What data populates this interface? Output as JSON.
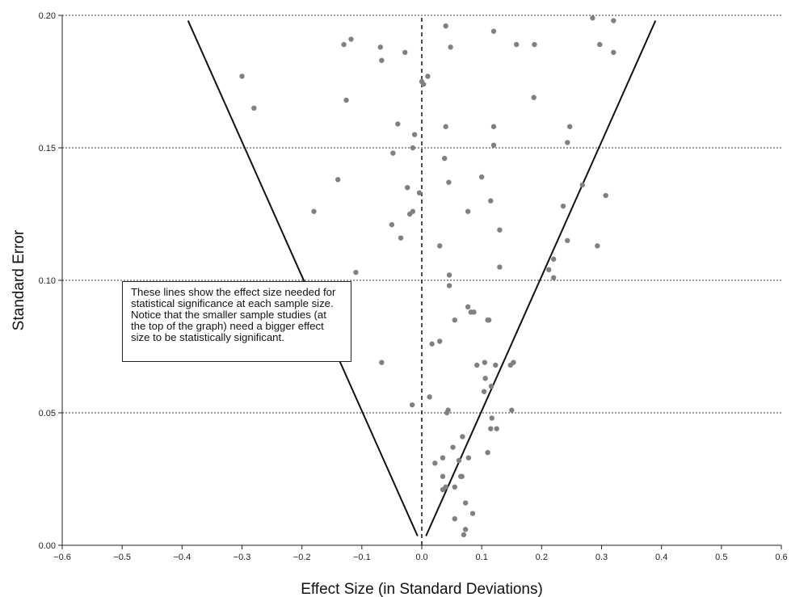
{
  "chart_data": {
    "type": "scatter",
    "xlabel": "Effect Size (in Standard Deviations)",
    "ylabel": "Standard Error",
    "xlim": [
      -0.6,
      0.6
    ],
    "ylim": [
      0.0,
      0.2
    ],
    "x_ticks": [
      "−0.6",
      "−0.5",
      "−0.4",
      "−0.3",
      "−0.2",
      "−0.1",
      "0.0",
      "0.1",
      "0.2",
      "0.3",
      "0.4",
      "0.5",
      "0.6"
    ],
    "y_ticks": [
      "0.00",
      "0.05",
      "0.10",
      "0.15",
      "0.20"
    ],
    "grid": "horizontal dotted",
    "annotation": "These lines show the effect size needed for statistical significance at each sample size. Notice that the smaller sample studies (at the top of the graph) need a bigger effect size to be statistically significant.",
    "funnel_lines": [
      {
        "x": [
          -0.39,
          -0.007
        ],
        "y": [
          0.198,
          0.0035
        ]
      },
      {
        "x": [
          0.39,
          0.007
        ],
        "y": [
          0.198,
          0.0035
        ]
      }
    ],
    "reference_line": {
      "x": 0.0,
      "y": [
        0.0,
        0.2
      ]
    },
    "points": [
      [
        0.285,
        0.199
      ],
      [
        0.32,
        0.198
      ],
      [
        0.04,
        0.196
      ],
      [
        0.12,
        0.194
      ],
      [
        0.32,
        0.186
      ],
      [
        0.297,
        0.189
      ],
      [
        0.188,
        0.189
      ],
      [
        0.158,
        0.189
      ],
      [
        0.048,
        0.188
      ],
      [
        -0.069,
        0.188
      ],
      [
        -0.13,
        0.189
      ],
      [
        -0.118,
        0.191
      ],
      [
        -0.028,
        0.186
      ],
      [
        -0.067,
        0.183
      ],
      [
        -0.3,
        0.177
      ],
      [
        0.01,
        0.177
      ],
      [
        0.0,
        0.175
      ],
      [
        0.003,
        0.174
      ],
      [
        -0.126,
        0.168
      ],
      [
        -0.28,
        0.165
      ],
      [
        0.187,
        0.169
      ],
      [
        -0.04,
        0.159
      ],
      [
        0.04,
        0.158
      ],
      [
        0.12,
        0.158
      ],
      [
        0.247,
        0.158
      ],
      [
        -0.012,
        0.155
      ],
      [
        0.243,
        0.152
      ],
      [
        0.12,
        0.151
      ],
      [
        -0.015,
        0.15
      ],
      [
        -0.048,
        0.148
      ],
      [
        0.038,
        0.146
      ],
      [
        -0.14,
        0.138
      ],
      [
        0.1,
        0.139
      ],
      [
        0.045,
        0.137
      ],
      [
        0.268,
        0.136
      ],
      [
        -0.024,
        0.135
      ],
      [
        -0.004,
        0.133
      ],
      [
        0.307,
        0.132
      ],
      [
        0.115,
        0.13
      ],
      [
        -0.18,
        0.126
      ],
      [
        -0.015,
        0.126
      ],
      [
        -0.02,
        0.125
      ],
      [
        0.077,
        0.126
      ],
      [
        0.236,
        0.128
      ],
      [
        0.13,
        0.119
      ],
      [
        -0.05,
        0.121
      ],
      [
        -0.035,
        0.116
      ],
      [
        0.243,
        0.115
      ],
      [
        0.03,
        0.113
      ],
      [
        0.293,
        0.113
      ],
      [
        0.22,
        0.108
      ],
      [
        0.13,
        0.105
      ],
      [
        0.212,
        0.104
      ],
      [
        -0.11,
        0.103
      ],
      [
        0.046,
        0.102
      ],
      [
        0.22,
        0.101
      ],
      [
        0.046,
        0.098
      ],
      [
        0.077,
        0.09
      ],
      [
        0.082,
        0.088
      ],
      [
        0.087,
        0.088
      ],
      [
        0.11,
        0.085
      ],
      [
        0.112,
        0.085
      ],
      [
        0.055,
        0.085
      ],
      [
        0.03,
        0.077
      ],
      [
        0.017,
        0.076
      ],
      [
        -0.067,
        0.069
      ],
      [
        0.105,
        0.069
      ],
      [
        0.123,
        0.068
      ],
      [
        0.153,
        0.069
      ],
      [
        0.092,
        0.068
      ],
      [
        0.148,
        0.068
      ],
      [
        0.106,
        0.063
      ],
      [
        0.116,
        0.06
      ],
      [
        0.104,
        0.058
      ],
      [
        0.013,
        0.056
      ],
      [
        -0.016,
        0.053
      ],
      [
        0.044,
        0.051
      ],
      [
        0.042,
        0.05
      ],
      [
        0.15,
        0.051
      ],
      [
        0.117,
        0.048
      ],
      [
        0.125,
        0.044
      ],
      [
        0.115,
        0.044
      ],
      [
        0.068,
        0.041
      ],
      [
        0.052,
        0.037
      ],
      [
        0.11,
        0.035
      ],
      [
        0.035,
        0.033
      ],
      [
        0.078,
        0.033
      ],
      [
        0.062,
        0.032
      ],
      [
        0.022,
        0.031
      ],
      [
        0.067,
        0.026
      ],
      [
        0.065,
        0.026
      ],
      [
        0.035,
        0.026
      ],
      [
        0.04,
        0.022
      ],
      [
        0.055,
        0.022
      ],
      [
        0.035,
        0.021
      ],
      [
        0.073,
        0.016
      ],
      [
        0.085,
        0.012
      ],
      [
        0.055,
        0.01
      ],
      [
        0.073,
        0.006
      ],
      [
        0.07,
        0.004
      ]
    ]
  }
}
